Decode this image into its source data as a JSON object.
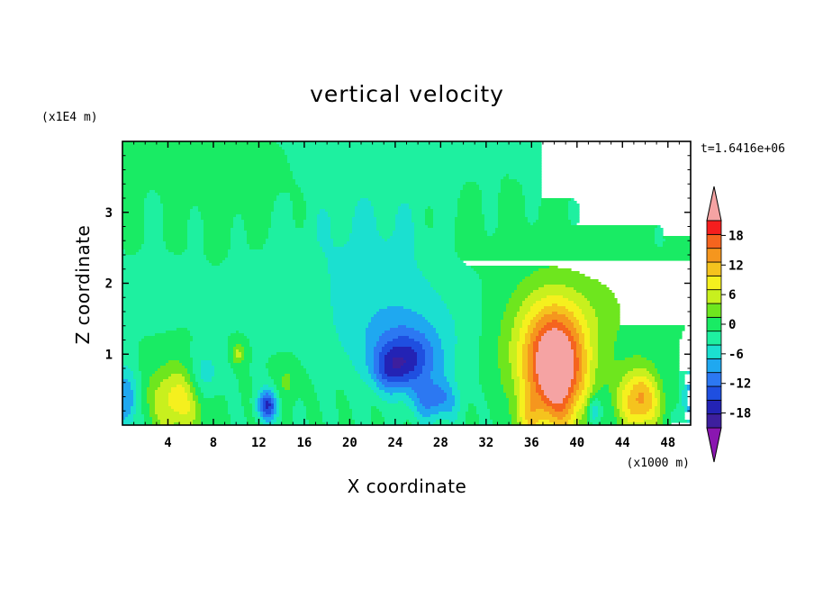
{
  "chart_data": {
    "type": "heatmap",
    "title": "vertical velocity",
    "xlabel": "X coordinate",
    "ylabel": "Z coordinate",
    "x_unit_label": "(x1000 m)",
    "y_unit_label": "(x1E4 m)",
    "time_label": "t=1.6416e+06",
    "xlim": [
      0,
      50
    ],
    "ylim": [
      0,
      4
    ],
    "x_ticks": [
      4,
      8,
      12,
      16,
      20,
      24,
      28,
      32,
      36,
      40,
      44,
      48
    ],
    "y_ticks": [
      1,
      2,
      3
    ],
    "x_tick_labels": [
      "4",
      "8",
      "12",
      "16",
      "20",
      "24",
      "28",
      "32",
      "36",
      "40",
      "44",
      "48"
    ],
    "y_tick_labels": [
      "1",
      "2",
      "3"
    ],
    "colorbar": {
      "levels": [
        -21,
        -18,
        -15,
        -12,
        -9,
        -6,
        -3,
        0,
        3,
        6,
        9,
        12,
        15,
        18,
        21
      ],
      "tick_values": [
        -18,
        -12,
        -6,
        0,
        6,
        12,
        18
      ],
      "tick_labels": [
        "-18",
        "-12",
        "-6",
        "0",
        "6",
        "12",
        "18"
      ],
      "colors": [
        "#3d1f9e",
        "#2323b5",
        "#1f4fe0",
        "#2c78f2",
        "#1fa8f0",
        "#1be0d0",
        "#1ef0a0",
        "#19eb64",
        "#6ee61e",
        "#c8f01e",
        "#f5f01e",
        "#f5c31e",
        "#f5961e",
        "#f5641e",
        "#f51e1e"
      ],
      "under_color": "#8a16b0",
      "over_color": "#f5a3a3"
    },
    "features": [
      {
        "x": 38.2,
        "z": 0.75,
        "sx": 2.6,
        "sz": 0.85,
        "amp": 23
      },
      {
        "x": 37.0,
        "z": 1.15,
        "sx": 4.0,
        "sz": 0.9,
        "amp": 8
      },
      {
        "x": 45.5,
        "z": 0.35,
        "sx": 1.8,
        "sz": 0.45,
        "amp": 16
      },
      {
        "x": 4.8,
        "z": 0.35,
        "sx": 2.3,
        "sz": 0.5,
        "amp": 11
      },
      {
        "x": 10.2,
        "z": 1.0,
        "sx": 0.6,
        "sz": 0.15,
        "amp": 7
      },
      {
        "x": 14.5,
        "z": 0.6,
        "sx": 1.0,
        "sz": 0.3,
        "amp": 4
      },
      {
        "x": 35.5,
        "z": 0.1,
        "sx": 1.0,
        "sz": 0.3,
        "amp": 6
      },
      {
        "x": 25.0,
        "z": 0.9,
        "sx": 2.8,
        "sz": 0.4,
        "amp": -12
      },
      {
        "x": 23.5,
        "z": 0.75,
        "sx": 1.6,
        "sz": 0.3,
        "amp": -6
      },
      {
        "x": 27.5,
        "z": 0.35,
        "sx": 2.0,
        "sz": 0.3,
        "amp": -10
      },
      {
        "x": 24.5,
        "z": 1.3,
        "sx": 5.5,
        "sz": 0.6,
        "amp": -5
      },
      {
        "x": 12.8,
        "z": 0.28,
        "sx": 0.9,
        "sz": 0.22,
        "amp": -15
      },
      {
        "x": 7.2,
        "z": 0.7,
        "sx": 1.4,
        "sz": 0.35,
        "amp": -6
      },
      {
        "x": 0.3,
        "z": 0.35,
        "sx": 0.9,
        "sz": 0.45,
        "amp": -10
      },
      {
        "x": 49.8,
        "z": 0.35,
        "sx": 0.6,
        "sz": 0.4,
        "amp": -8
      },
      {
        "x": 41.5,
        "z": 0.2,
        "sx": 0.6,
        "sz": 0.2,
        "amp": -10
      },
      {
        "x": 22.0,
        "z": 2.4,
        "sx": 7.0,
        "sz": 1.1,
        "amp": -4
      },
      {
        "x": 42.5,
        "z": 1.6,
        "sx": 3.0,
        "sz": 0.7,
        "amp": 3
      },
      {
        "x": 46.0,
        "z": 3.5,
        "sx": 4.0,
        "sz": 0.5,
        "amp": 2
      },
      {
        "x": 30.0,
        "z": 2.7,
        "sx": 3.5,
        "sz": 0.5,
        "amp": 2
      },
      {
        "x": 10.0,
        "z": 3.2,
        "sx": 5.0,
        "sz": 0.5,
        "amp": 2
      },
      {
        "x": 6.0,
        "z": 3.7,
        "sx": 4.0,
        "sz": 0.3,
        "amp": 2
      },
      {
        "x": 3.0,
        "z": 1.9,
        "sx": 2.5,
        "sz": 0.4,
        "amp": -2
      }
    ]
  }
}
